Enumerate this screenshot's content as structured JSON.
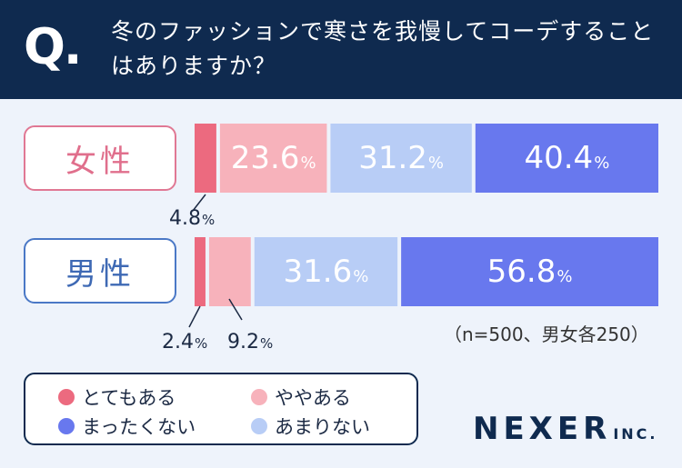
{
  "header": {
    "q_mark": "Q.",
    "question": "冬のファッションで寒さを我慢してコーデすることはありますか？"
  },
  "colors": {
    "header_bg": "#0f2a4f",
    "toteme_aru": "#ec6a7f",
    "yaya_aru": "#f7b2bb",
    "amari_nai": "#b8cdf6",
    "mattaku_nai": "#6878ee"
  },
  "chart_data": {
    "type": "bar",
    "orientation": "horizontal",
    "stacked": true,
    "title": "冬のファッションで寒さを我慢してコーデすることはありますか？",
    "categories": [
      "女性",
      "男性"
    ],
    "unit": "%",
    "series": [
      {
        "name": "とてもある",
        "color": "#ec6a7f",
        "values": [
          4.8,
          2.4
        ],
        "labels": [
          "4.8",
          "2.4"
        ]
      },
      {
        "name": "ややある",
        "color": "#f7b2bb",
        "values": [
          23.6,
          9.2
        ],
        "labels": [
          "23.6",
          "9.2"
        ]
      },
      {
        "name": "あまりない",
        "color": "#b8cdf6",
        "values": [
          31.2,
          31.6
        ],
        "labels": [
          "31.2",
          "31.6"
        ]
      },
      {
        "name": "まったくない",
        "color": "#6878ee",
        "values": [
          40.4,
          56.8
        ],
        "labels": [
          "40.4",
          "56.8"
        ]
      }
    ],
    "note": "（n=500、男女各250）",
    "legend": [
      {
        "label": "とてもある",
        "color": "#ec6a7f"
      },
      {
        "label": "ややある",
        "color": "#f7b2bb"
      },
      {
        "label": "まったくない",
        "color": "#6878ee"
      },
      {
        "label": "あまりない",
        "color": "#b8cdf6"
      }
    ]
  },
  "brand": {
    "name": "NEXER",
    "suffix": "INC."
  }
}
